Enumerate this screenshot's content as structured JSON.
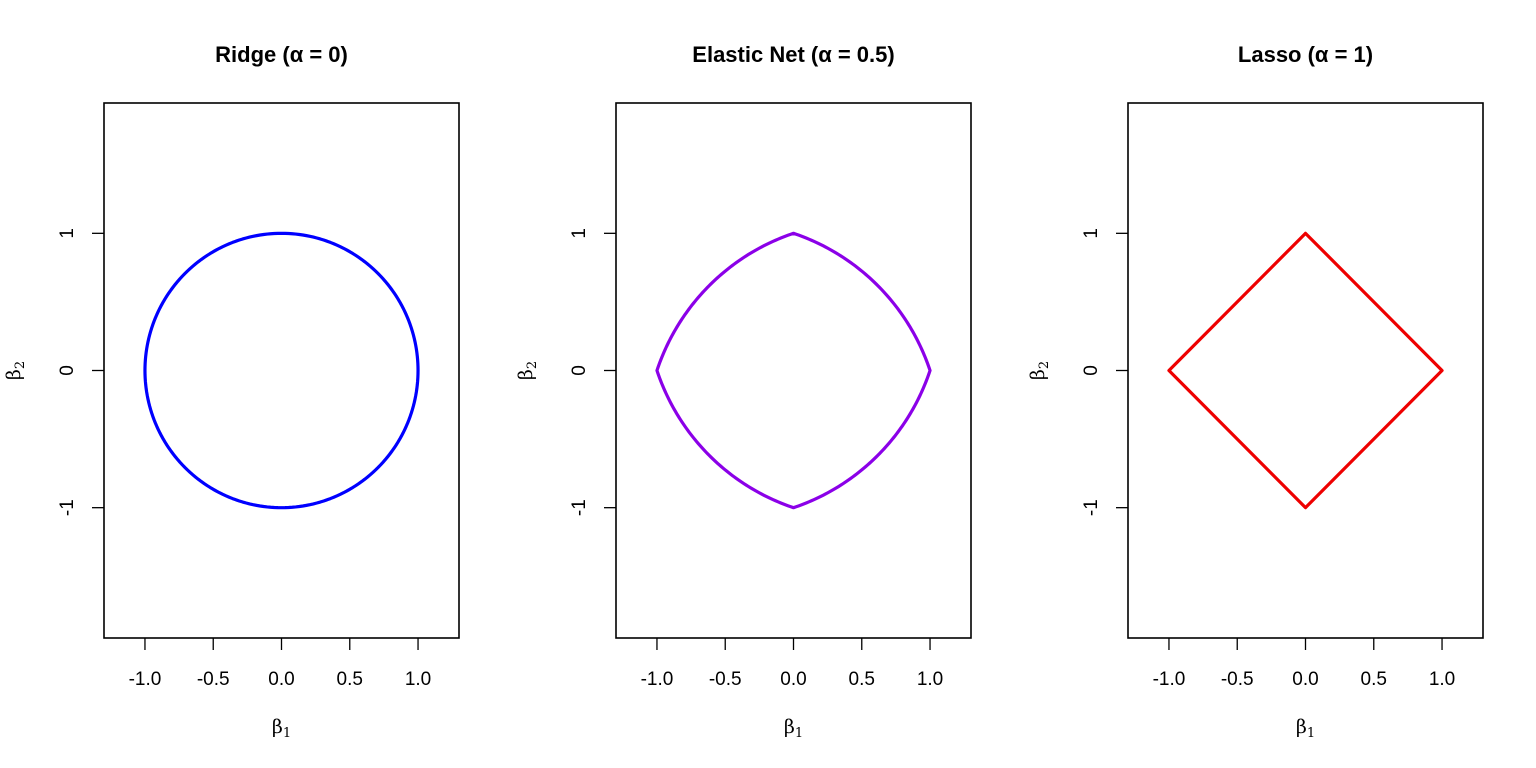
{
  "chart_data": [
    {
      "type": "line",
      "title": "Ridge (α = 0)",
      "xlabel": "β1",
      "ylabel": "β2",
      "xlim": [
        -1.3,
        1.3
      ],
      "ylim": [
        -1.95,
        1.95
      ],
      "xticks": [
        -1.0,
        -0.5,
        0.0,
        0.5,
        1.0
      ],
      "xtick_labels": [
        "-1.0",
        "-0.5",
        "0.0",
        "0.5",
        "1.0"
      ],
      "yticks": [
        -1,
        0,
        1
      ],
      "ytick_labels": [
        "-1",
        "0",
        "1"
      ],
      "grid": false,
      "legend": "none",
      "series": [
        {
          "color": "#0000ff",
          "x": [
            1,
            0.866,
            0.5,
            0,
            -0.5,
            -0.866,
            -1,
            -0.866,
            -0.5,
            0,
            0.5,
            0.866,
            1
          ],
          "y": [
            0,
            0.5,
            0.866,
            1,
            0.866,
            0.5,
            0,
            -0.5,
            -0.866,
            -1,
            -0.866,
            -0.5,
            0
          ],
          "curve": "circle"
        }
      ]
    },
    {
      "type": "line",
      "title": "Elastic Net (α = 0.5)",
      "xlabel": "β1",
      "ylabel": "β2",
      "xlim": [
        -1.3,
        1.3
      ],
      "ylim": [
        -1.95,
        1.95
      ],
      "xticks": [
        -1.0,
        -0.5,
        0.0,
        0.5,
        1.0
      ],
      "xtick_labels": [
        "-1.0",
        "-0.5",
        "0.0",
        "0.5",
        "1.0"
      ],
      "yticks": [
        -1,
        0,
        1
      ],
      "ytick_labels": [
        "-1",
        "0",
        "1"
      ],
      "grid": false,
      "legend": "none",
      "series": [
        {
          "color": "#8b00e8",
          "x": [
            1,
            0.828,
            0.618,
            0.366,
            0.05,
            0,
            -0.05,
            -0.366,
            -0.618,
            -0.828,
            -0.98,
            -0.98,
            -0.828,
            -0.618,
            -0.366,
            -0.05,
            0,
            0.05,
            0.366,
            0.618,
            0.828,
            1
          ],
          "y": [
            0,
            0.378,
            0.618,
            0.828,
            0.97,
            0.99,
            0.99,
            0.828,
            0.618,
            0.378,
            0.05,
            -0.05,
            -0.378,
            -0.618,
            -0.828,
            -0.99,
            -0.99,
            -0.97,
            -0.828,
            -0.618,
            -0.378,
            0
          ],
          "curve": "elastic"
        }
      ]
    },
    {
      "type": "line",
      "title": "Lasso (α = 1)",
      "xlabel": "β1",
      "ylabel": "β2",
      "xlim": [
        -1.3,
        1.3
      ],
      "ylim": [
        -1.95,
        1.95
      ],
      "xticks": [
        -1.0,
        -0.5,
        0.0,
        0.5,
        1.0
      ],
      "xtick_labels": [
        "-1.0",
        "-0.5",
        "0.0",
        "0.5",
        "1.0"
      ],
      "yticks": [
        -1,
        0,
        1
      ],
      "ytick_labels": [
        "-1",
        "0",
        "1"
      ],
      "grid": false,
      "legend": "none",
      "series": [
        {
          "color": "#ee0000",
          "x": [
            1,
            0,
            -1,
            0,
            1
          ],
          "y": [
            0,
            1,
            0,
            -1,
            0
          ],
          "curve": "polyline"
        }
      ]
    }
  ]
}
